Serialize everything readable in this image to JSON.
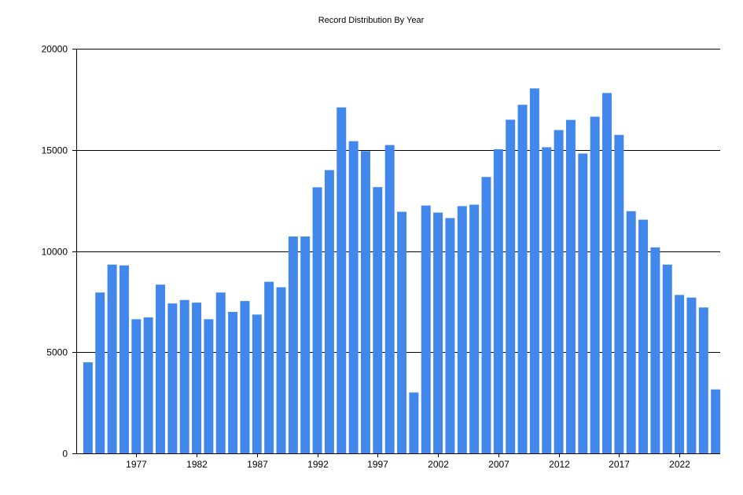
{
  "chart_data": {
    "type": "bar",
    "title": "Record Distribution By Year",
    "xlabel": "",
    "ylabel": "",
    "ylim": [
      0,
      20000
    ],
    "yticks": [
      "0",
      "5000",
      "10000",
      "15000",
      "20000"
    ],
    "xticks": [
      "1977",
      "1982",
      "1987",
      "1992",
      "1997",
      "2002",
      "2007",
      "2012",
      "2017",
      "2022"
    ],
    "grid": "horizontal",
    "bar_color": "#4287ec",
    "categories": [
      1973,
      1974,
      1975,
      1976,
      1977,
      1978,
      1979,
      1980,
      1981,
      1982,
      1983,
      1984,
      1985,
      1986,
      1987,
      1988,
      1989,
      1990,
      1991,
      1992,
      1993,
      1994,
      1995,
      1996,
      1997,
      1998,
      1999,
      2000,
      2001,
      2002,
      2003,
      2004,
      2005,
      2006,
      2007,
      2008,
      2009,
      2010,
      2011,
      2012,
      2013,
      2014,
      2015,
      2016,
      2017,
      2018,
      2019,
      2020,
      2021,
      2022,
      2023,
      2024,
      2025
    ],
    "values": [
      4500,
      7950,
      9330,
      9290,
      6630,
      6720,
      8340,
      7410,
      7580,
      7450,
      6630,
      7950,
      6990,
      7530,
      6860,
      8480,
      8210,
      10720,
      10720,
      13150,
      14000,
      17100,
      15430,
      14940,
      13160,
      15240,
      11940,
      3010,
      12250,
      11900,
      11630,
      12220,
      12290,
      13660,
      15030,
      16490,
      17230,
      18040,
      15130,
      15980,
      16480,
      14820,
      16640,
      17810,
      15740,
      11970,
      11550,
      10180,
      9330,
      7830,
      7700,
      7210,
      3160
    ]
  }
}
